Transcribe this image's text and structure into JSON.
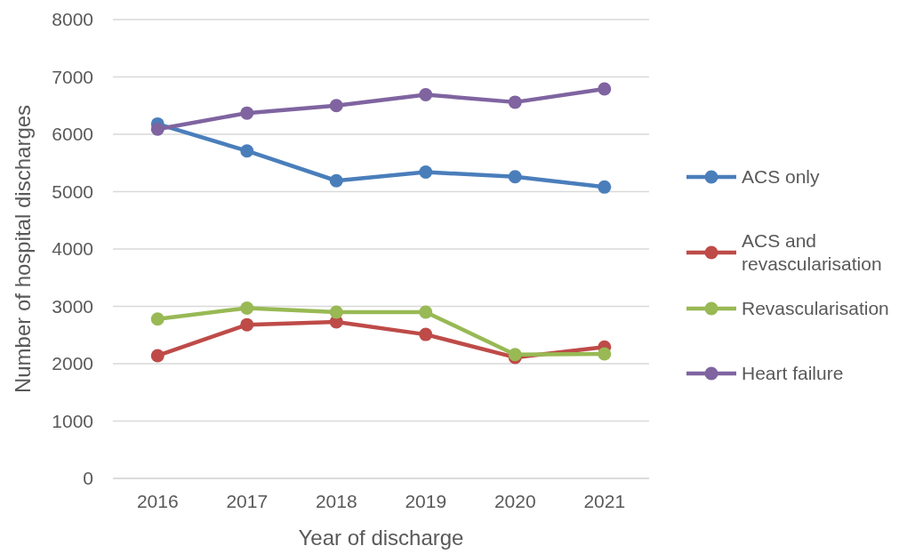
{
  "chart_data": {
    "type": "line",
    "xlabel": "Year of discharge",
    "ylabel": "Number of hospital discharges",
    "categories": [
      "2016",
      "2017",
      "2018",
      "2019",
      "2020",
      "2021"
    ],
    "ylim": [
      0,
      8000
    ],
    "yticks": [
      0,
      1000,
      2000,
      3000,
      4000,
      5000,
      6000,
      7000,
      8000
    ],
    "grid": "y",
    "legend": "right",
    "marker": "circle",
    "series": [
      {
        "name": "ACS only",
        "color": "#4a7ebb",
        "values": [
          6180,
          5710,
          5190,
          5340,
          5260,
          5080
        ]
      },
      {
        "name": "ACS and revascularisation",
        "color": "#be4b48",
        "values": [
          2140,
          2680,
          2730,
          2510,
          2110,
          2290
        ]
      },
      {
        "name": "Revascularisation",
        "color": "#98b954",
        "values": [
          2780,
          2970,
          2900,
          2900,
          2160,
          2170
        ]
      },
      {
        "name": "Heart failure",
        "color": "#7f64a0",
        "values": [
          6090,
          6370,
          6500,
          6690,
          6560,
          6790
        ]
      }
    ]
  }
}
